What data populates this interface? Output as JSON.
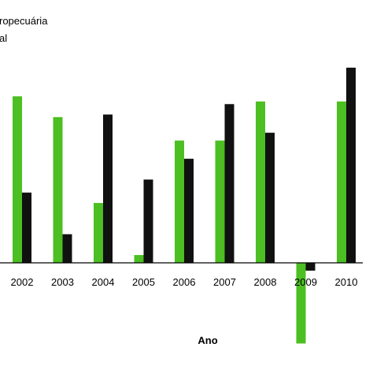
{
  "chart_data": {
    "type": "bar",
    "xlabel": "Ano",
    "categories": [
      "2002",
      "2003",
      "2004",
      "2005",
      "2006",
      "2007",
      "2008",
      "2009",
      "2010"
    ],
    "series": [
      {
        "name": "ropecuária",
        "color": "#4cbf22",
        "values": [
          6.4,
          5.6,
          2.3,
          0.3,
          4.7,
          4.7,
          6.2,
          -3.1,
          6.2
        ]
      },
      {
        "name": "al",
        "color": "#111111",
        "values": [
          2.7,
          1.1,
          5.7,
          3.2,
          4.0,
          6.1,
          5.0,
          -0.3,
          7.5
        ]
      }
    ],
    "ylim": [
      -3.1,
      7.5
    ],
    "grid": false,
    "legend": "top-left"
  }
}
